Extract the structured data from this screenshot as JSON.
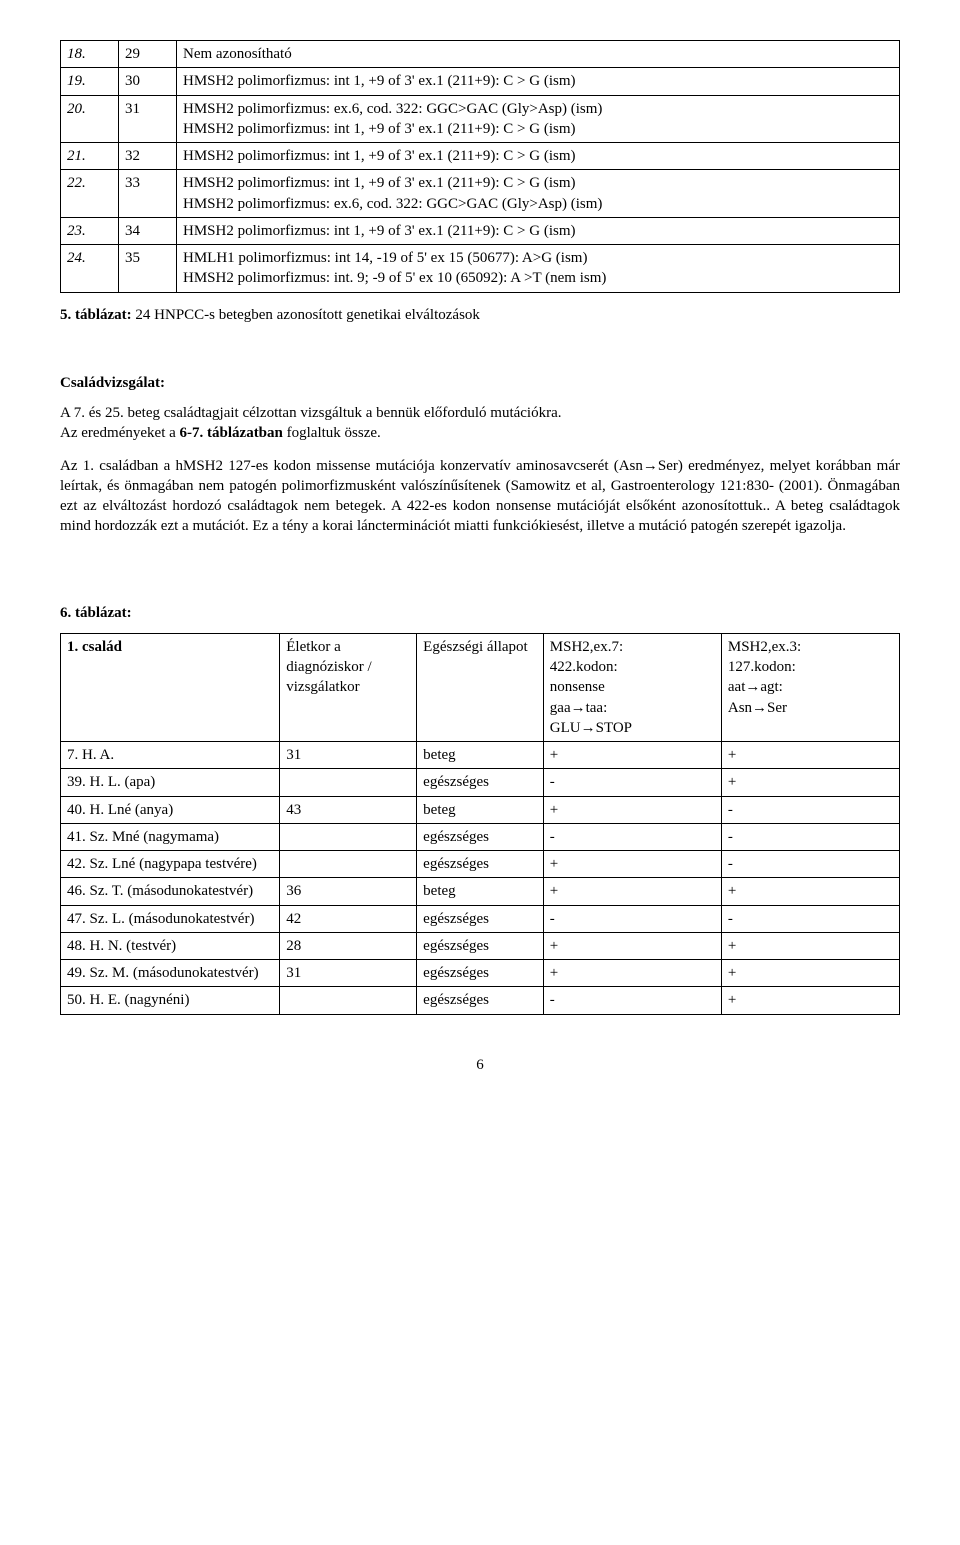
{
  "table1": {
    "rows": [
      {
        "n": "18.",
        "id": "29",
        "desc": "Nem azonosítható"
      },
      {
        "n": "19.",
        "id": "30",
        "desc": "HMSH2 polimorfizmus: int 1, +9 of 3' ex.1 (211+9): C > G (ism)"
      },
      {
        "n": "20.",
        "id": "31",
        "desc": "HMSH2 polimorfizmus: ex.6, cod. 322: GGC>GAC (Gly>Asp) (ism)\nHMSH2 polimorfizmus: int 1, +9 of 3' ex.1 (211+9): C > G (ism)"
      },
      {
        "n": "21.",
        "id": "32",
        "desc": "HMSH2 polimorfizmus: int 1, +9 of 3' ex.1 (211+9): C > G (ism)"
      },
      {
        "n": "22.",
        "id": "33",
        "desc": "HMSH2 polimorfizmus: int 1, +9 of 3' ex.1 (211+9): C > G (ism)\nHMSH2 polimorfizmus: ex.6, cod. 322: GGC>GAC (Gly>Asp) (ism)"
      },
      {
        "n": "23.",
        "id": "34",
        "desc": "HMSH2 polimorfizmus: int 1, +9 of 3' ex.1 (211+9): C > G (ism)"
      },
      {
        "n": "24.",
        "id": "35",
        "desc": "HMLH1 polimorfizmus: int 14, -19 of 5' ex 15 (50677): A>G (ism)\nHMSH2 polimorfizmus: int. 9; -9 of 5' ex 10 (65092): A >T (nem ism)"
      }
    ]
  },
  "caption1_bold": "5. táblázat:",
  "caption1_rest": " 24 HNPCC-s betegben azonosított genetikai elváltozások",
  "section_family": "Családvizsgálat:",
  "para1a": "A 7. és 25. beteg családtagjait célzottan vizsgáltuk a bennük előforduló mutációkra.",
  "para1b_a": "Az eredményeket a ",
  "para1b_b": "6-7. táblázatban",
  "para1b_c": " foglaltuk össze.",
  "para2": "Az 1. családban a hMSH2 127-es kodon missense mutációja konzervatív aminosavcserét (Asn→Ser) eredményez, melyet korábban már leírtak, és önmagában nem patogén polimorfizmusként valószínűsítenek (Samowitz et al, Gastroenterology 121:830- (2001). Önmagában ezt az elváltozást hordozó családtagok nem betegek. A 422-es kodon nonsense mutációját elsőként azonosítottuk.. A beteg családtagok mind hordozzák ezt a mutációt. Ez a tény a korai láncterminációt miatti funkciókiesést, illetve a mutáció patogén szerepét igazolja.",
  "table2_title": "6. táblázat:",
  "table2": {
    "head": {
      "c1": "1. család",
      "c2": "Életkor a diagnóziskor / vizsgálatkor",
      "c3": "Egészségi állapot",
      "c4": "MSH2,ex.7:\n422.kodon:\nnonsense\ngaa→taa:\nGLU→STOP",
      "c5": "MSH2,ex.3:\n127.kodon:\naat→agt:\nAsn→Ser"
    },
    "rows": [
      {
        "c1": "7. H. A.",
        "c2": "31",
        "c3": "beteg",
        "c4": "+",
        "c5": "+"
      },
      {
        "c1": "39. H. L. (apa)",
        "c2": "",
        "c3": "egészséges",
        "c4": "-",
        "c5": "+"
      },
      {
        "c1": "40. H. Lné (anya)",
        "c2": "43",
        "c3": "beteg",
        "c4": "+",
        "c5": "-"
      },
      {
        "c1": "41. Sz. Mné (nagymama)",
        "c2": "",
        "c3": "egészséges",
        "c4": "-",
        "c5": "-"
      },
      {
        "c1": "42. Sz. Lné (nagypapa testvére)",
        "c2": "",
        "c3": "egészséges",
        "c4": "+",
        "c5": "-"
      },
      {
        "c1": "46. Sz. T. (másodunokatestvér)",
        "c2": "36",
        "c3": "beteg",
        "c4": "+",
        "c5": "+"
      },
      {
        "c1": "47. Sz. L. (másodunokatestvér)",
        "c2": "42",
        "c3": "egészséges",
        "c4": "-",
        "c5": "-"
      },
      {
        "c1": "48. H. N. (testvér)",
        "c2": "28",
        "c3": "egészséges",
        "c4": "+",
        "c5": "+"
      },
      {
        "c1": "49. Sz. M. (másodunokatestvér)",
        "c2": "31",
        "c3": "egészséges",
        "c4": "+",
        "c5": "+"
      },
      {
        "c1": "50. H. E. (nagynéni)",
        "c2": "",
        "c3": "egészséges",
        "c4": "-",
        "c5": "+"
      }
    ]
  },
  "page_number": "6"
}
